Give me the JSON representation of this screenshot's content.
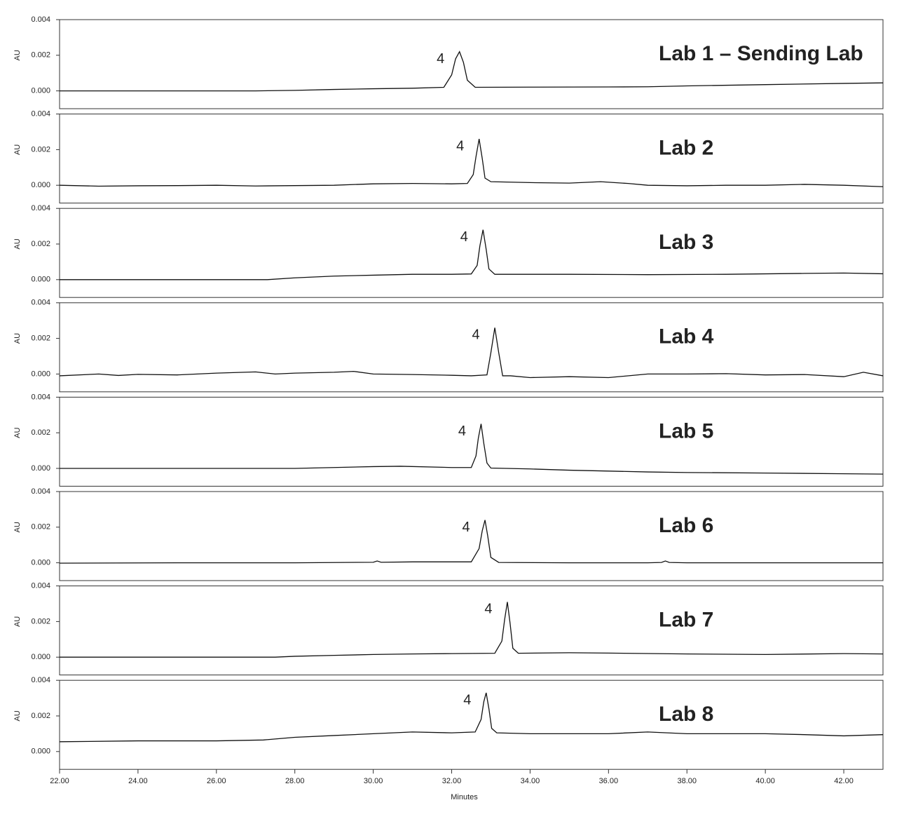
{
  "chart_data": [
    {
      "type": "line",
      "title": "Lab 1 – Sending Lab",
      "ylabel": "AU",
      "peak_label": "4",
      "color": "#111111",
      "xlim": [
        22,
        43
      ],
      "ylim": [
        -0.001,
        0.004
      ],
      "yticks": [
        {
          "value": 0,
          "label": "0.000"
        },
        0.002,
        0.004
      ],
      "x": [
        22,
        24,
        26,
        27,
        28,
        29,
        30,
        31,
        31.8,
        32.0,
        32.1,
        32.2,
        32.3,
        32.4,
        32.6,
        34,
        36,
        37,
        38,
        40,
        42,
        43
      ],
      "values": [
        0,
        0,
        0,
        0,
        3e-05,
        8e-05,
        0.00012,
        0.00015,
        0.0002,
        0.0009,
        0.0018,
        0.0022,
        0.0016,
        0.0006,
        0.0002,
        0.00021,
        0.00022,
        0.00023,
        0.00028,
        0.00035,
        0.00042,
        0.00045
      ]
    },
    {
      "type": "line",
      "title": "Lab 2",
      "ylabel": "AU",
      "peak_label": "4",
      "color": "#111111",
      "xlim": [
        22,
        43
      ],
      "ylim": [
        -0.001,
        0.004
      ],
      "yticks": [
        {
          "value": 0,
          "label": "0.000"
        },
        0.002,
        0.004
      ],
      "x": [
        22,
        23,
        24,
        25,
        26,
        27,
        28,
        29,
        30,
        31,
        32,
        32.4,
        32.55,
        32.62,
        32.7,
        32.78,
        32.85,
        33.0,
        34,
        35,
        35.8,
        36.5,
        37,
        38,
        39,
        40,
        41,
        42,
        43
      ],
      "values": [
        0,
        -5e-05,
        -3e-05,
        -2e-05,
        0,
        -4e-05,
        -2e-05,
        0,
        8e-05,
        0.0001,
        8e-05,
        0.0001,
        0.0006,
        0.0016,
        0.0026,
        0.0015,
        0.0004,
        0.0002,
        0.00015,
        0.00012,
        0.0002,
        0.0001,
        0,
        -3e-05,
        0,
        0,
        5e-05,
        0,
        -8e-05
      ]
    },
    {
      "type": "line",
      "title": "Lab 3",
      "ylabel": "AU",
      "peak_label": "4",
      "color": "#111111",
      "xlim": [
        22,
        43
      ],
      "ylim": [
        -0.001,
        0.004
      ],
      "yticks": [
        {
          "value": 0,
          "label": "0.000"
        },
        0.002,
        0.004
      ],
      "x": [
        22,
        25,
        27.3,
        28,
        29,
        30,
        31,
        32,
        32.5,
        32.65,
        32.72,
        32.8,
        32.88,
        32.95,
        33.1,
        35,
        37,
        39,
        41,
        42,
        43
      ],
      "values": [
        0,
        0,
        0,
        0.0001,
        0.0002,
        0.00025,
        0.0003,
        0.0003,
        0.00032,
        0.0008,
        0.0019,
        0.0028,
        0.0017,
        0.0006,
        0.0003,
        0.0003,
        0.00028,
        0.0003,
        0.00035,
        0.00037,
        0.00033
      ]
    },
    {
      "type": "line",
      "title": "Lab 4",
      "ylabel": "AU",
      "peak_label": "4",
      "color": "#111111",
      "xlim": [
        22,
        43
      ],
      "ylim": [
        -0.001,
        0.004
      ],
      "yticks": [
        {
          "value": 0,
          "label": "0.000"
        },
        0.002,
        0.004
      ],
      "x": [
        22,
        23,
        23.5,
        24,
        25,
        26,
        27,
        27.5,
        28,
        29,
        29.5,
        30,
        31,
        32,
        32.5,
        32.9,
        33.0,
        33.1,
        33.2,
        33.3,
        33.5,
        34,
        35,
        36,
        37,
        38,
        39,
        40,
        41,
        42,
        42.5,
        43
      ],
      "values": [
        -0.0001,
        0,
        -8e-05,
        -2e-05,
        -5e-05,
        5e-05,
        0.00012,
        0,
        5e-05,
        0.0001,
        0.00015,
        0,
        -3e-05,
        -7e-05,
        -0.0001,
        -5e-05,
        0.0012,
        0.0026,
        0.0012,
        -0.0001,
        -0.0001,
        -0.0002,
        -0.00015,
        -0.0002,
        0,
        0,
        2e-05,
        -5e-05,
        -3e-05,
        -0.00015,
        0.0001,
        -0.0001
      ]
    },
    {
      "type": "line",
      "title": "Lab 5",
      "ylabel": "AU",
      "peak_label": "4",
      "color": "#111111",
      "xlim": [
        22,
        43
      ],
      "ylim": [
        -0.001,
        0.004
      ],
      "yticks": [
        {
          "value": 0,
          "label": "0.000"
        },
        0.002,
        0.004
      ],
      "x": [
        22,
        25,
        28,
        30,
        30.7,
        32,
        32.5,
        32.62,
        32.68,
        32.75,
        32.82,
        32.9,
        33.0,
        34,
        35,
        36,
        37,
        38,
        40,
        42,
        43
      ],
      "values": [
        0,
        0,
        0,
        0.0001,
        0.00012,
        5e-05,
        5e-05,
        0.0007,
        0.0017,
        0.0025,
        0.0014,
        0.0003,
        2e-05,
        -3e-05,
        -0.0001,
        -0.00015,
        -0.0002,
        -0.00023,
        -0.00026,
        -0.0003,
        -0.00032
      ]
    },
    {
      "type": "line",
      "title": "Lab 6",
      "ylabel": "AU",
      "peak_label": "4",
      "color": "#111111",
      "xlim": [
        22,
        43
      ],
      "ylim": [
        -0.001,
        0.004
      ],
      "yticks": [
        {
          "value": 0,
          "label": "0.000"
        },
        0.002,
        0.004
      ],
      "x": [
        22,
        25,
        28,
        30,
        30.1,
        30.2,
        31,
        32,
        32.5,
        32.7,
        32.78,
        32.85,
        32.92,
        33.0,
        33.2,
        35,
        37,
        37.35,
        37.45,
        37.55,
        38,
        40,
        43
      ],
      "values": [
        -2e-05,
        0,
        0,
        3e-05,
        0.0001,
        3e-05,
        5e-05,
        5e-05,
        5e-05,
        0.0008,
        0.0018,
        0.0024,
        0.0015,
        0.0003,
        2e-05,
        0,
        0,
        2e-05,
        0.0001,
        2e-05,
        0,
        0,
        0
      ]
    },
    {
      "type": "line",
      "title": "Lab 7",
      "ylabel": "AU",
      "peak_label": "4",
      "color": "#111111",
      "xlim": [
        22,
        43
      ],
      "ylim": [
        -0.001,
        0.004
      ],
      "yticks": [
        {
          "value": 0,
          "label": "0.000"
        },
        0.002,
        0.004
      ],
      "x": [
        22,
        25,
        27.5,
        28,
        29,
        30,
        31,
        32,
        33.1,
        33.28,
        33.35,
        33.42,
        33.49,
        33.56,
        33.7,
        35,
        36,
        38,
        40,
        42,
        43
      ],
      "values": [
        0,
        0,
        0,
        5e-05,
        0.0001,
        0.00015,
        0.00018,
        0.0002,
        0.00022,
        0.0009,
        0.0021,
        0.0031,
        0.0019,
        0.0005,
        0.00022,
        0.00025,
        0.00023,
        0.00018,
        0.00015,
        0.0002,
        0.00018
      ]
    },
    {
      "type": "line",
      "title": "Lab 8",
      "ylabel": "AU",
      "peak_label": "4",
      "color": "#111111",
      "xlim": [
        22,
        43
      ],
      "ylim": [
        -0.001,
        0.004
      ],
      "yticks": [
        {
          "value": 0,
          "label": "0.000"
        },
        0.002,
        0.004
      ],
      "xlabel": "Minutes",
      "xticks": [
        {
          "value": 22,
          "label": "22.00"
        },
        {
          "value": 24,
          "label": "24.00"
        },
        {
          "value": 26,
          "label": "26.00"
        },
        {
          "value": 28,
          "label": "28.00"
        },
        {
          "value": 30,
          "label": "30.00"
        },
        {
          "value": 32,
          "label": "32.00"
        },
        {
          "value": 34,
          "label": "34.00"
        },
        {
          "value": 36,
          "label": "36.00"
        },
        {
          "value": 38,
          "label": "38.00"
        },
        {
          "value": 40,
          "label": "40.00"
        },
        {
          "value": 42,
          "label": "42.00"
        }
      ],
      "x": [
        22,
        24,
        26,
        27.2,
        28,
        29,
        30,
        31,
        32,
        32.6,
        32.75,
        32.82,
        32.88,
        32.95,
        33.02,
        33.15,
        34,
        36,
        37,
        38,
        40,
        41,
        42,
        43
      ],
      "values": [
        0.00055,
        0.0006,
        0.0006,
        0.00065,
        0.0008,
        0.0009,
        0.001,
        0.0011,
        0.00105,
        0.0011,
        0.0018,
        0.0028,
        0.0033,
        0.0024,
        0.0013,
        0.00105,
        0.001,
        0.001,
        0.0011,
        0.001,
        0.001,
        0.00095,
        0.00088,
        0.00095
      ]
    }
  ]
}
